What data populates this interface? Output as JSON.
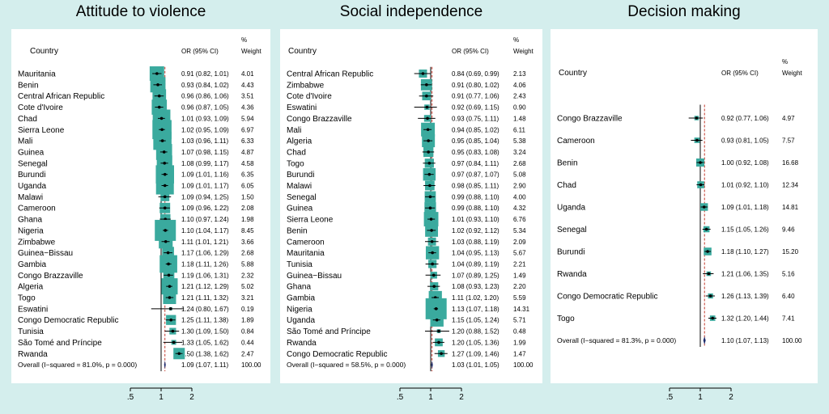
{
  "panels": [
    {
      "title": "Attitude to violence",
      "header": {
        "country": "Country",
        "or": "OR (95% CI)",
        "weight_top": "%",
        "weight_bottom": "Weight"
      },
      "axis_ticks": [
        ".5",
        "1",
        "2"
      ],
      "overall": {
        "label": "Overall  (I−squared = 81.0%, p = 0.000)",
        "or": 1.09,
        "lo": 1.07,
        "hi": 1.11,
        "or_text": "1.09 (1.07, 1.11)",
        "weight": "100.00"
      },
      "rows": [
        {
          "country": "Mauritania",
          "or": 0.91,
          "lo": 0.82,
          "hi": 1.01,
          "or_text": "0.91 (0.82, 1.01)",
          "weight": "4.01"
        },
        {
          "country": "Benin",
          "or": 0.93,
          "lo": 0.84,
          "hi": 1.02,
          "or_text": "0.93 (0.84, 1.02)",
          "weight": "4.43"
        },
        {
          "country": "Central African Republic",
          "or": 0.96,
          "lo": 0.86,
          "hi": 1.06,
          "or_text": "0.96 (0.86, 1.06)",
          "weight": "3.51"
        },
        {
          "country": "Cote d'Ivoire",
          "or": 0.96,
          "lo": 0.87,
          "hi": 1.05,
          "or_text": "0.96 (0.87, 1.05)",
          "weight": "4.36"
        },
        {
          "country": "Chad",
          "or": 1.01,
          "lo": 0.93,
          "hi": 1.09,
          "or_text": "1.01 (0.93, 1.09)",
          "weight": "5.94"
        },
        {
          "country": "Sierra Leone",
          "or": 1.02,
          "lo": 0.95,
          "hi": 1.09,
          "or_text": "1.02 (0.95, 1.09)",
          "weight": "6.97"
        },
        {
          "country": "Mali",
          "or": 1.03,
          "lo": 0.96,
          "hi": 1.11,
          "or_text": "1.03 (0.96, 1.11)",
          "weight": "6.33"
        },
        {
          "country": "Guinea",
          "or": 1.07,
          "lo": 0.98,
          "hi": 1.15,
          "or_text": "1.07 (0.98, 1.15)",
          "weight": "4.87"
        },
        {
          "country": "Senegal",
          "or": 1.08,
          "lo": 0.99,
          "hi": 1.17,
          "or_text": "1.08 (0.99, 1.17)",
          "weight": "4.58"
        },
        {
          "country": "Burundi",
          "or": 1.09,
          "lo": 1.01,
          "hi": 1.16,
          "or_text": "1.09 (1.01, 1.16)",
          "weight": "6.35"
        },
        {
          "country": "Uganda",
          "or": 1.09,
          "lo": 1.01,
          "hi": 1.17,
          "or_text": "1.09 (1.01, 1.17)",
          "weight": "6.05"
        },
        {
          "country": "Malawi",
          "or": 1.09,
          "lo": 0.94,
          "hi": 1.25,
          "or_text": "1.09 (0.94, 1.25)",
          "weight": "1.50"
        },
        {
          "country": "Cameroon",
          "or": 1.09,
          "lo": 0.96,
          "hi": 1.22,
          "or_text": "1.09 (0.96, 1.22)",
          "weight": "2.08"
        },
        {
          "country": "Ghana",
          "or": 1.1,
          "lo": 0.97,
          "hi": 1.24,
          "or_text": "1.10 (0.97, 1.24)",
          "weight": "1.98"
        },
        {
          "country": "Nigeria",
          "or": 1.1,
          "lo": 1.04,
          "hi": 1.17,
          "or_text": "1.10 (1.04, 1.17)",
          "weight": "8.45"
        },
        {
          "country": "Zimbabwe",
          "or": 1.11,
          "lo": 1.01,
          "hi": 1.21,
          "or_text": "1.11 (1.01, 1.21)",
          "weight": "3.66"
        },
        {
          "country": "Guinea−Bissau",
          "or": 1.17,
          "lo": 1.06,
          "hi": 1.29,
          "or_text": "1.17 (1.06, 1.29)",
          "weight": "2.68"
        },
        {
          "country": "Gambia",
          "or": 1.18,
          "lo": 1.11,
          "hi": 1.26,
          "or_text": "1.18 (1.11, 1.26)",
          "weight": "5.88"
        },
        {
          "country": "Congo Brazzaville",
          "or": 1.19,
          "lo": 1.06,
          "hi": 1.31,
          "or_text": "1.19 (1.06, 1.31)",
          "weight": "2.32"
        },
        {
          "country": "Algeria",
          "or": 1.21,
          "lo": 1.12,
          "hi": 1.29,
          "or_text": "1.21 (1.12, 1.29)",
          "weight": "5.02"
        },
        {
          "country": "Togo",
          "or": 1.21,
          "lo": 1.11,
          "hi": 1.32,
          "or_text": "1.21 (1.11, 1.32)",
          "weight": "3.21"
        },
        {
          "country": "Eswatini",
          "or": 1.24,
          "lo": 0.8,
          "hi": 1.67,
          "or_text": "1.24 (0.80, 1.67)",
          "weight": "0.19"
        },
        {
          "country": "Congo Democratic Republic",
          "or": 1.25,
          "lo": 1.11,
          "hi": 1.38,
          "or_text": "1.25 (1.11, 1.38)",
          "weight": "1.89"
        },
        {
          "country": "Tunisia",
          "or": 1.3,
          "lo": 1.09,
          "hi": 1.5,
          "or_text": "1.30 (1.09, 1.50)",
          "weight": "0.84"
        },
        {
          "country": "São Tomé and Príncipe",
          "or": 1.33,
          "lo": 1.05,
          "hi": 1.62,
          "or_text": "1.33 (1.05, 1.62)",
          "weight": "0.44"
        },
        {
          "country": "Rwanda",
          "or": 1.5,
          "lo": 1.38,
          "hi": 1.62,
          "or_text": "1.50 (1.38, 1.62)",
          "weight": "2.47"
        }
      ]
    },
    {
      "title": "Social independence",
      "header": {
        "country": "Country",
        "or": "OR (95% CI)",
        "weight_top": "%",
        "weight_bottom": "Weight"
      },
      "axis_ticks": [
        ".5",
        "1",
        "2"
      ],
      "overall": {
        "label": "Overall  (I−squared = 58.5%, p = 0.000)",
        "or": 1.03,
        "lo": 1.01,
        "hi": 1.05,
        "or_text": "1.03 (1.01, 1.05)",
        "weight": "100.00"
      },
      "rows": [
        {
          "country": "Central African Republic",
          "or": 0.84,
          "lo": 0.69,
          "hi": 0.99,
          "or_text": "0.84 (0.69, 0.99)",
          "weight": "2.13"
        },
        {
          "country": "Zimbabwe",
          "or": 0.91,
          "lo": 0.8,
          "hi": 1.02,
          "or_text": "0.91 (0.80, 1.02)",
          "weight": "4.06"
        },
        {
          "country": "Cote d'Ivoire",
          "or": 0.91,
          "lo": 0.77,
          "hi": 1.06,
          "or_text": "0.91 (0.77, 1.06)",
          "weight": "2.43"
        },
        {
          "country": "Eswatini",
          "or": 0.92,
          "lo": 0.69,
          "hi": 1.15,
          "or_text": "0.92 (0.69, 1.15)",
          "weight": "0.90"
        },
        {
          "country": "Congo Brazzaville",
          "or": 0.93,
          "lo": 0.75,
          "hi": 1.11,
          "or_text": "0.93 (0.75, 1.11)",
          "weight": "1.48"
        },
        {
          "country": "Mali",
          "or": 0.94,
          "lo": 0.85,
          "hi": 1.02,
          "or_text": "0.94 (0.85, 1.02)",
          "weight": "6.11"
        },
        {
          "country": "Algeria",
          "or": 0.95,
          "lo": 0.85,
          "hi": 1.04,
          "or_text": "0.95 (0.85, 1.04)",
          "weight": "5.38"
        },
        {
          "country": "Chad",
          "or": 0.95,
          "lo": 0.83,
          "hi": 1.08,
          "or_text": "0.95 (0.83, 1.08)",
          "weight": "3.24"
        },
        {
          "country": "Togo",
          "or": 0.97,
          "lo": 0.84,
          "hi": 1.11,
          "or_text": "0.97 (0.84, 1.11)",
          "weight": "2.68"
        },
        {
          "country": "Burundi",
          "or": 0.97,
          "lo": 0.87,
          "hi": 1.07,
          "or_text": "0.97 (0.87, 1.07)",
          "weight": "5.08"
        },
        {
          "country": "Malawi",
          "or": 0.98,
          "lo": 0.85,
          "hi": 1.11,
          "or_text": "0.98 (0.85, 1.11)",
          "weight": "2.90"
        },
        {
          "country": "Senegal",
          "or": 0.99,
          "lo": 0.88,
          "hi": 1.1,
          "or_text": "0.99 (0.88, 1.10)",
          "weight": "4.00"
        },
        {
          "country": "Guinea",
          "or": 0.99,
          "lo": 0.88,
          "hi": 1.1,
          "or_text": "0.99 (0.88, 1.10)",
          "weight": "4.32"
        },
        {
          "country": "Sierra Leone",
          "or": 1.01,
          "lo": 0.93,
          "hi": 1.1,
          "or_text": "1.01 (0.93, 1.10)",
          "weight": "6.76"
        },
        {
          "country": "Benin",
          "or": 1.02,
          "lo": 0.92,
          "hi": 1.12,
          "or_text": "1.02 (0.92, 1.12)",
          "weight": "5.34"
        },
        {
          "country": "Cameroon",
          "or": 1.03,
          "lo": 0.88,
          "hi": 1.19,
          "or_text": "1.03 (0.88, 1.19)",
          "weight": "2.09"
        },
        {
          "country": "Mauritania",
          "or": 1.04,
          "lo": 0.95,
          "hi": 1.13,
          "or_text": "1.04 (0.95, 1.13)",
          "weight": "5.67"
        },
        {
          "country": "Tunisia",
          "or": 1.04,
          "lo": 0.89,
          "hi": 1.19,
          "or_text": "1.04 (0.89, 1.19)",
          "weight": "2.21"
        },
        {
          "country": "Guinea−Bissau",
          "or": 1.07,
          "lo": 0.89,
          "hi": 1.25,
          "or_text": "1.07 (0.89, 1.25)",
          "weight": "1.49"
        },
        {
          "country": "Ghana",
          "or": 1.08,
          "lo": 0.93,
          "hi": 1.23,
          "or_text": "1.08 (0.93, 1.23)",
          "weight": "2.20"
        },
        {
          "country": "Gambia",
          "or": 1.11,
          "lo": 1.02,
          "hi": 1.2,
          "or_text": "1.11 (1.02, 1.20)",
          "weight": "5.59"
        },
        {
          "country": "Nigeria",
          "or": 1.13,
          "lo": 1.07,
          "hi": 1.18,
          "or_text": "1.13 (1.07, 1.18)",
          "weight": "14.31"
        },
        {
          "country": "Uganda",
          "or": 1.15,
          "lo": 1.05,
          "hi": 1.24,
          "or_text": "1.15 (1.05, 1.24)",
          "weight": "5.71"
        },
        {
          "country": "São Tomé and Príncipe",
          "or": 1.2,
          "lo": 0.88,
          "hi": 1.52,
          "or_text": "1.20 (0.88, 1.52)",
          "weight": "0.48"
        },
        {
          "country": "Rwanda",
          "or": 1.2,
          "lo": 1.05,
          "hi": 1.36,
          "or_text": "1.20 (1.05, 1.36)",
          "weight": "1.99"
        },
        {
          "country": "Congo Democratic Republic",
          "or": 1.27,
          "lo": 1.09,
          "hi": 1.46,
          "or_text": "1.27 (1.09, 1.46)",
          "weight": "1.47"
        }
      ]
    },
    {
      "title": "Decision making",
      "header": {
        "country": "Country",
        "or": "OR (95% CI)",
        "weight_top": "%",
        "weight_bottom": "Weight"
      },
      "axis_ticks": [
        ".5",
        "1",
        "2"
      ],
      "overall": {
        "label": "Overall  (I−squared = 81.3%, p = 0.000)",
        "or": 1.1,
        "lo": 1.07,
        "hi": 1.13,
        "or_text": "1.10 (1.07, 1.13)",
        "weight": "100.00"
      },
      "rows": [
        {
          "country": "Congo Brazzaville",
          "or": 0.92,
          "lo": 0.77,
          "hi": 1.06,
          "or_text": "0.92 (0.77, 1.06)",
          "weight": "4.97"
        },
        {
          "country": "Cameroon",
          "or": 0.93,
          "lo": 0.81,
          "hi": 1.05,
          "or_text": "0.93 (0.81, 1.05)",
          "weight": "7.57"
        },
        {
          "country": "Benin",
          "or": 1.0,
          "lo": 0.92,
          "hi": 1.08,
          "or_text": "1.00 (0.92, 1.08)",
          "weight": "16.68"
        },
        {
          "country": "Chad",
          "or": 1.01,
          "lo": 0.92,
          "hi": 1.1,
          "or_text": "1.01 (0.92, 1.10)",
          "weight": "12.34"
        },
        {
          "country": "Uganda",
          "or": 1.09,
          "lo": 1.01,
          "hi": 1.18,
          "or_text": "1.09 (1.01, 1.18)",
          "weight": "14.81"
        },
        {
          "country": "Senegal",
          "or": 1.15,
          "lo": 1.05,
          "hi": 1.26,
          "or_text": "1.15 (1.05, 1.26)",
          "weight": "9.46"
        },
        {
          "country": "Burundi",
          "or": 1.18,
          "lo": 1.1,
          "hi": 1.27,
          "or_text": "1.18 (1.10, 1.27)",
          "weight": "15.20"
        },
        {
          "country": "Rwanda",
          "or": 1.21,
          "lo": 1.06,
          "hi": 1.35,
          "or_text": "1.21 (1.06, 1.35)",
          "weight": "5.16"
        },
        {
          "country": "Congo Democratic Republic",
          "or": 1.26,
          "lo": 1.13,
          "hi": 1.39,
          "or_text": "1.26 (1.13, 1.39)",
          "weight": "6.40"
        },
        {
          "country": "Togo",
          "or": 1.32,
          "lo": 1.2,
          "hi": 1.44,
          "or_text": "1.32 (1.20, 1.44)",
          "weight": "7.41"
        }
      ]
    }
  ],
  "colors": {
    "background": "#d4eeed",
    "panel": "#ffffff",
    "box": "#3aaa9e",
    "overall": "#1c2a6b",
    "ref_line": "#c0392b"
  },
  "chart_data": [
    {
      "type": "forest",
      "title": "Attitude to violence",
      "scale": "log",
      "null_value": 1,
      "xticks": [
        0.5,
        1,
        2
      ]
    },
    {
      "type": "forest",
      "title": "Social independence",
      "scale": "log",
      "null_value": 1,
      "xticks": [
        0.5,
        1,
        2
      ]
    },
    {
      "type": "forest",
      "title": "Decision making",
      "scale": "log",
      "null_value": 1,
      "xticks": [
        0.5,
        1,
        2
      ]
    }
  ]
}
